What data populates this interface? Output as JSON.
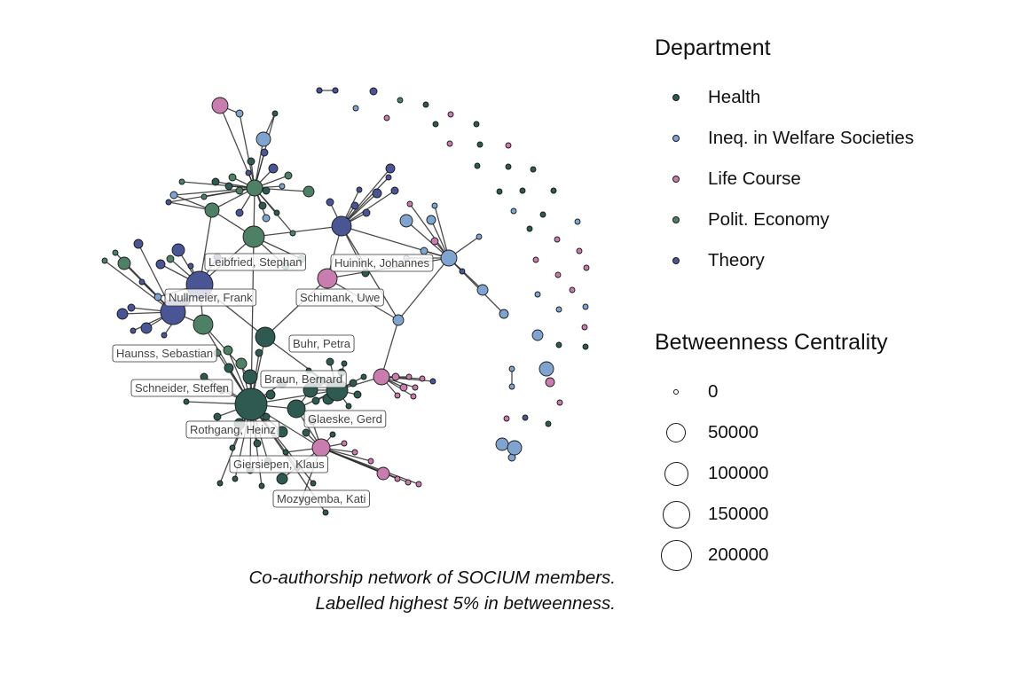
{
  "colors": {
    "Health": "#2e5a52",
    "Ineq. in Welfare Societies": "#7fa4cf",
    "Life Course": "#c97cae",
    "Polit. Economy": "#4e8066",
    "Theory": "#4a5596"
  },
  "legend_department": {
    "title": "Department",
    "items": [
      {
        "label": "Health",
        "color": "#2e5a52"
      },
      {
        "label": "Ineq. in Welfare Societies",
        "color": "#7fa4cf"
      },
      {
        "label": "Life Course",
        "color": "#c97cae"
      },
      {
        "label": "Polit. Economy",
        "color": "#4e8066"
      },
      {
        "label": "Theory",
        "color": "#4a5596"
      }
    ]
  },
  "legend_betweenness": {
    "title": "Betweenness Centrality",
    "items": [
      {
        "label": "0",
        "value": 0
      },
      {
        "label": "50000",
        "value": 50000
      },
      {
        "label": "100000",
        "value": 100000
      },
      {
        "label": "150000",
        "value": 150000
      },
      {
        "label": "200000",
        "value": 200000
      }
    ]
  },
  "caption": {
    "line1": "Co-authorship network of SOCIUM members.",
    "line2": "Labelled highest 5% in betweenness."
  },
  "labels": [
    "Leibfried, Stephan",
    "Huinink, Johannes",
    "Nullmeier, Frank",
    "Schimank, Uwe",
    "Buhr, Petra",
    "Haunss, Sebastian",
    "Schneider, Steffen",
    "Braun, Bernard",
    "Glaeske, Gerd",
    "Rothgang, Heinz",
    "Giersiepen, Klaus",
    "Mozygemba, Kati"
  ]
}
